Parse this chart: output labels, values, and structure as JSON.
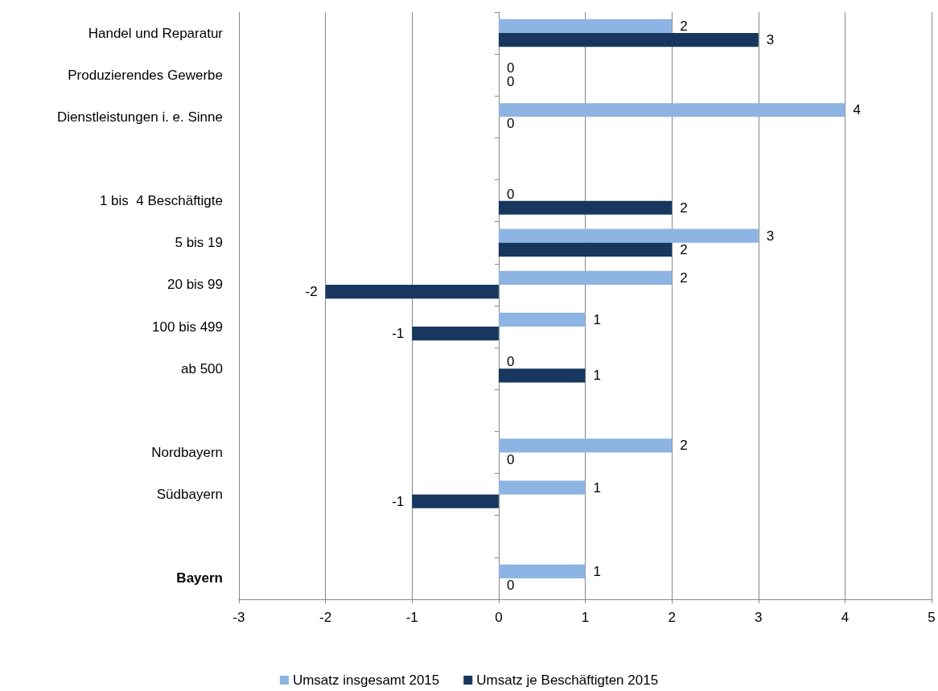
{
  "chart_data": {
    "type": "bar",
    "orientation": "horizontal",
    "categories": [
      "Handel und Reparatur",
      "Produzierendes Gewerbe",
      "Dienstleistungen i. e. Sinne",
      null,
      "1 bis  4 Beschäftigte",
      "5 bis 19",
      "20 bis 99",
      "100 bis 499",
      "ab 500",
      null,
      "Nordbayern",
      "Südbayern",
      null,
      "Bayern"
    ],
    "series": [
      {
        "name": "Umsatz insgesamt 2015",
        "color": "#8db4e2",
        "values": [
          2,
          0,
          4,
          null,
          0,
          3,
          2,
          1,
          0,
          null,
          2,
          1,
          null,
          1
        ]
      },
      {
        "name": "Umsatz je Beschäftigten 2015",
        "color": "#17375e",
        "values": [
          3,
          0,
          0,
          null,
          2,
          2,
          -2,
          -1,
          1,
          null,
          0,
          -1,
          null,
          0
        ]
      }
    ],
    "xlim": [
      -3,
      5
    ],
    "xticks": [
      -3,
      -2,
      -1,
      0,
      1,
      2,
      3,
      4,
      5
    ],
    "grid": "x",
    "legend": "bottom",
    "data_labels": true
  }
}
